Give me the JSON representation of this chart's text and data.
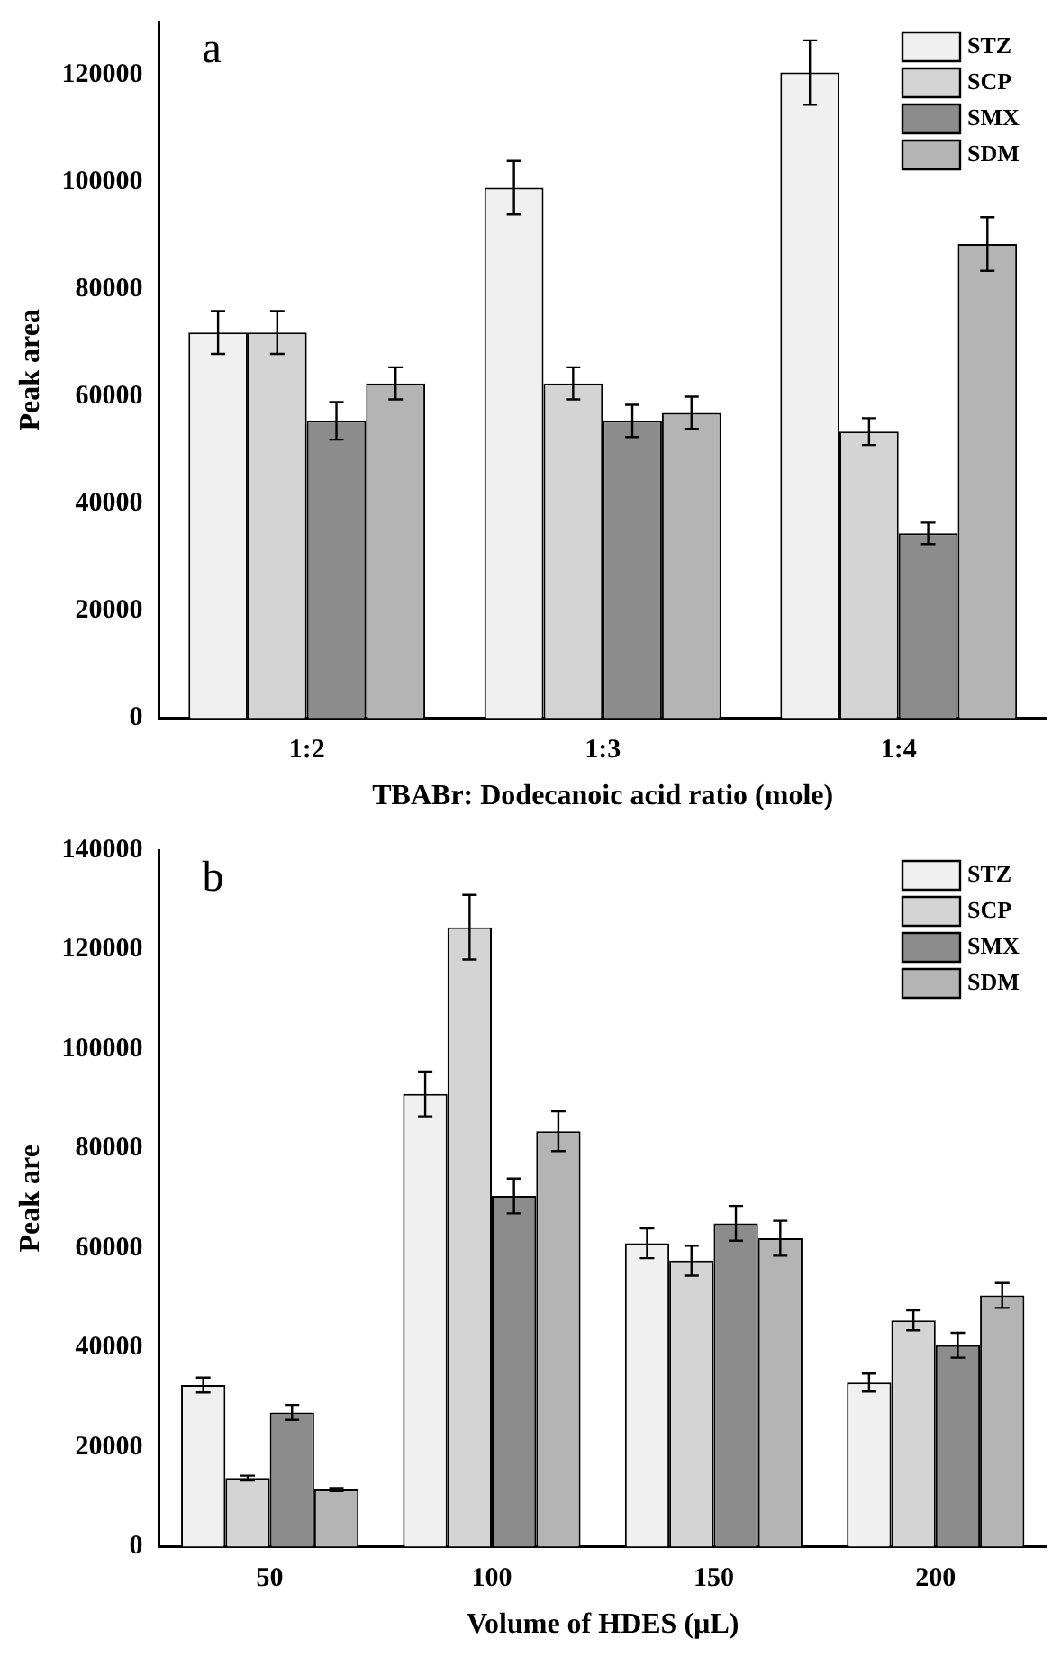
{
  "chart_data": [
    {
      "type": "bar",
      "xlabel": "TBABr: Dodecanoic acid ratio (mole)",
      "ylabel": "Peak area",
      "annotations": [
        "a"
      ],
      "categories": [
        "1:2",
        "1:3",
        "1:4"
      ],
      "series": [
        {
          "name": "STZ",
          "color": "#f0f0f0",
          "values": [
            72000,
            99000,
            120500
          ],
          "errors": [
            4000,
            5000,
            6000
          ]
        },
        {
          "name": "SCP",
          "color": "#d4d4d4",
          "values": [
            72000,
            62500,
            53500
          ],
          "errors": [
            4000,
            3000,
            2500
          ]
        },
        {
          "name": "SMX",
          "color": "#8c8c8c",
          "values": [
            55500,
            55500,
            34500
          ],
          "errors": [
            3500,
            3000,
            2000
          ]
        },
        {
          "name": "SDM",
          "color": "#b4b4b4",
          "values": [
            62500,
            57000,
            88500
          ],
          "errors": [
            3000,
            3000,
            5000
          ]
        }
      ],
      "ylim": [
        0,
        130000
      ],
      "yticks": [
        0,
        20000,
        40000,
        60000,
        80000,
        100000,
        120000
      ],
      "grid": false,
      "legend": "top right"
    },
    {
      "type": "bar",
      "xlabel": "Volume of HDES (µL)",
      "ylabel": "Peak are",
      "annotations": [
        "b"
      ],
      "categories": [
        "50",
        "100",
        "150",
        "200"
      ],
      "series": [
        {
          "name": "STZ",
          "color": "#f0f0f0",
          "values": [
            32500,
            91000,
            61000,
            33000
          ],
          "errors": [
            1500,
            4500,
            3000,
            1800
          ]
        },
        {
          "name": "SCP",
          "color": "#d4d4d4",
          "values": [
            13800,
            124500,
            57500,
            45500
          ],
          "errors": [
            500,
            6500,
            3000,
            2000
          ]
        },
        {
          "name": "SMX",
          "color": "#8c8c8c",
          "values": [
            27000,
            70500,
            65000,
            40500
          ],
          "errors": [
            1500,
            3500,
            3500,
            2500
          ]
        },
        {
          "name": "SDM",
          "color": "#b4b4b4",
          "values": [
            11500,
            83500,
            62000,
            50500
          ],
          "errors": [
            300,
            4000,
            3500,
            2500
          ]
        }
      ],
      "ylim": [
        0,
        140000
      ],
      "yticks": [
        0,
        20000,
        40000,
        60000,
        80000,
        100000,
        120000,
        140000
      ],
      "grid": false,
      "legend": "top right"
    }
  ]
}
